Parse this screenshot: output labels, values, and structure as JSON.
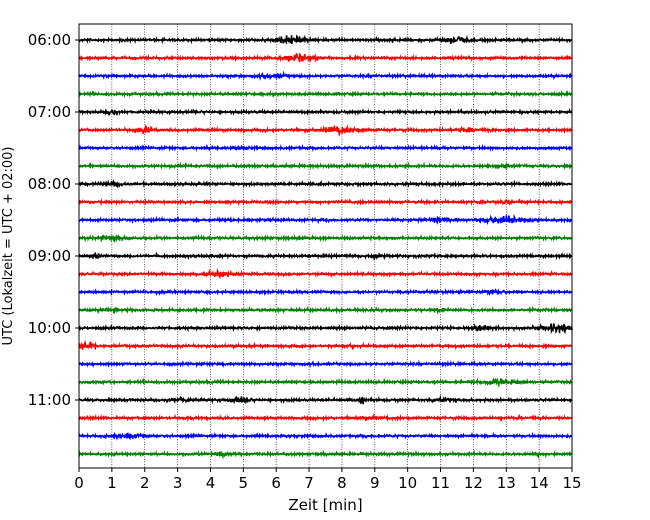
{
  "chart_data": {
    "type": "line",
    "title": "",
    "xlabel": "Zeit  [min]",
    "ylabel": "UTC (Lokalzeit = UTC + 02:00)",
    "xlim": [
      0,
      15
    ],
    "x_ticks": [
      "0",
      "1",
      "2",
      "3",
      "4",
      "5",
      "6",
      "7",
      "8",
      "9",
      "10",
      "11",
      "12",
      "13",
      "14",
      "15"
    ],
    "row_interval_minutes": 15,
    "y_tick_labels": [
      "06:00",
      "07:00",
      "08:00",
      "09:00",
      "10:00",
      "11:00"
    ],
    "colors": [
      "#000000",
      "#ff0000",
      "#0000ff",
      "#008000"
    ],
    "grid": "vertical dotted",
    "traces": [
      {
        "time": "06:00",
        "color": "#000000",
        "events": [
          {
            "t": 6.4,
            "amp": 1.0,
            "width": 0.5
          },
          {
            "t": 11.4,
            "amp": 0.8,
            "width": 0.5
          }
        ]
      },
      {
        "time": "06:15",
        "color": "#ff0000",
        "events": [
          {
            "t": 6.7,
            "amp": 1.0,
            "width": 0.6
          }
        ]
      },
      {
        "time": "06:30",
        "color": "#0000ff",
        "events": [
          {
            "t": 6.0,
            "amp": 0.35,
            "width": 0.6
          }
        ]
      },
      {
        "time": "06:45",
        "color": "#008000",
        "events": []
      },
      {
        "time": "07:00",
        "color": "#000000",
        "events": [
          {
            "t": 1.0,
            "amp": 0.9,
            "width": 0.2
          }
        ]
      },
      {
        "time": "07:15",
        "color": "#ff0000",
        "events": [
          {
            "t": 2.0,
            "amp": 0.6,
            "width": 0.3
          },
          {
            "t": 7.9,
            "amp": 0.7,
            "width": 0.7
          },
          {
            "t": 11.8,
            "amp": 0.45,
            "width": 0.3
          }
        ]
      },
      {
        "time": "07:30",
        "color": "#0000ff",
        "events": [
          {
            "t": 5.0,
            "amp": 0.3,
            "width": 0.3
          }
        ]
      },
      {
        "time": "07:45",
        "color": "#008000",
        "events": [
          {
            "t": 12.8,
            "amp": 0.4,
            "width": 0.4
          }
        ]
      },
      {
        "time": "08:00",
        "color": "#000000",
        "events": [
          {
            "t": 1.0,
            "amp": 0.4,
            "width": 0.4
          }
        ]
      },
      {
        "time": "08:15",
        "color": "#ff0000",
        "events": [
          {
            "t": 13.0,
            "amp": 0.45,
            "width": 0.2
          }
        ]
      },
      {
        "time": "08:30",
        "color": "#0000ff",
        "events": [
          {
            "t": 13.0,
            "amp": 0.85,
            "width": 0.9
          },
          {
            "t": 11.0,
            "amp": 0.45,
            "width": 0.5
          }
        ]
      },
      {
        "time": "08:45",
        "color": "#008000",
        "events": [
          {
            "t": 1.0,
            "amp": 0.45,
            "width": 0.6
          }
        ]
      },
      {
        "time": "09:00",
        "color": "#000000",
        "events": [
          {
            "t": 0.5,
            "amp": 0.5,
            "width": 0.2
          },
          {
            "t": 9.0,
            "amp": 0.4,
            "width": 0.2
          }
        ]
      },
      {
        "time": "09:15",
        "color": "#ff0000",
        "events": [
          {
            "t": 4.2,
            "amp": 0.6,
            "width": 0.5
          }
        ]
      },
      {
        "time": "09:30",
        "color": "#0000ff",
        "events": [
          {
            "t": 12.5,
            "amp": 0.35,
            "width": 0.4
          }
        ]
      },
      {
        "time": "09:45",
        "color": "#008000",
        "events": [
          {
            "t": 1.0,
            "amp": 0.4,
            "width": 0.3
          },
          {
            "t": 11.0,
            "amp": 0.35,
            "width": 0.2
          }
        ]
      },
      {
        "time": "10:00",
        "color": "#000000",
        "events": [
          {
            "t": 14.6,
            "amp": 1.05,
            "width": 0.6
          },
          {
            "t": 12.2,
            "amp": 0.6,
            "width": 0.4
          }
        ]
      },
      {
        "time": "10:15",
        "color": "#ff0000",
        "events": [
          {
            "t": 0.2,
            "amp": 0.9,
            "width": 0.3
          },
          {
            "t": 8.3,
            "amp": 0.4,
            "width": 0.1
          }
        ]
      },
      {
        "time": "10:30",
        "color": "#0000ff",
        "events": []
      },
      {
        "time": "10:45",
        "color": "#008000",
        "events": [
          {
            "t": 12.9,
            "amp": 0.65,
            "width": 0.8
          }
        ]
      },
      {
        "time": "11:00",
        "color": "#000000",
        "events": [
          {
            "t": 4.9,
            "amp": 0.75,
            "width": 0.3
          },
          {
            "t": 8.6,
            "amp": 1.2,
            "width": 0.1
          },
          {
            "t": 11.0,
            "amp": 0.5,
            "width": 0.4
          },
          {
            "t": 3.0,
            "amp": 0.35,
            "width": 0.5
          }
        ]
      },
      {
        "time": "11:15",
        "color": "#ff0000",
        "events": [
          {
            "t": 8.8,
            "amp": 0.35,
            "width": 0.4
          }
        ]
      },
      {
        "time": "11:30",
        "color": "#0000ff",
        "events": [
          {
            "t": 1.5,
            "amp": 0.4,
            "width": 0.6
          }
        ]
      },
      {
        "time": "11:45",
        "color": "#008000",
        "events": [
          {
            "t": 4.3,
            "amp": 0.35,
            "width": 0.3
          },
          {
            "t": 14.0,
            "amp": 0.3,
            "width": 0.3
          }
        ]
      }
    ]
  }
}
